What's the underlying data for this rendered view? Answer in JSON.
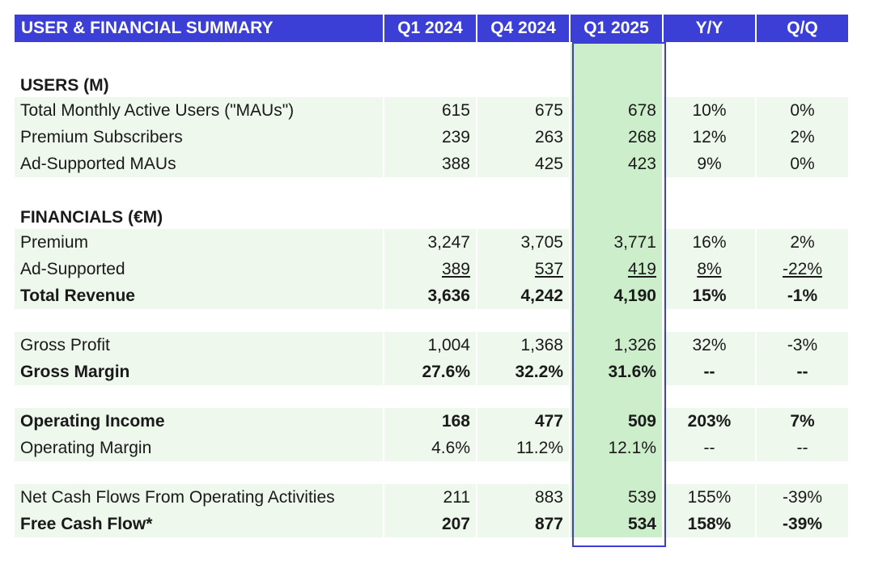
{
  "header": {
    "title": "USER & FINANCIAL SUMMARY",
    "cols": [
      "Q1 2024",
      "Q4 2024",
      "Q1 2025",
      "Y/Y",
      "Q/Q"
    ]
  },
  "sections": {
    "users": "USERS (M)",
    "financials": "FINANCIALS (€M)"
  },
  "rows": {
    "mau": {
      "label": "Total Monthly Active Users (\"MAUs\")",
      "v": [
        "615",
        "675",
        "678",
        "10%",
        "0%"
      ]
    },
    "premsubs": {
      "label": "Premium Subscribers",
      "v": [
        "239",
        "263",
        "268",
        "12%",
        "2%"
      ]
    },
    "admau": {
      "label": "Ad-Supported MAUs",
      "v": [
        "388",
        "425",
        "423",
        "9%",
        "0%"
      ]
    },
    "premium": {
      "label": "Premium",
      "v": [
        "3,247",
        "3,705",
        "3,771",
        "16%",
        "2%"
      ]
    },
    "adsup": {
      "label": "Ad-Supported",
      "v": [
        "389",
        "537",
        "419",
        "8%",
        "-22%"
      ]
    },
    "totrev": {
      "label": "Total Revenue",
      "v": [
        "3,636",
        "4,242",
        "4,190",
        "15%",
        "-1%"
      ]
    },
    "gp": {
      "label": "Gross Profit",
      "v": [
        "1,004",
        "1,368",
        "1,326",
        "32%",
        "-3%"
      ]
    },
    "gm": {
      "label": "Gross Margin",
      "v": [
        "27.6%",
        "32.2%",
        "31.6%",
        "--",
        "--"
      ]
    },
    "oi": {
      "label": "Operating Income",
      "v": [
        "168",
        "477",
        "509",
        "203%",
        "7%"
      ]
    },
    "om": {
      "label": "Operating Margin",
      "v": [
        "4.6%",
        "11.2%",
        "12.1%",
        "--",
        "--"
      ]
    },
    "ncf": {
      "label": "Net Cash Flows From Operating Activities",
      "v": [
        "211",
        "883",
        "539",
        "155%",
        "-39%"
      ]
    },
    "fcf": {
      "label": "Free Cash Flow*",
      "v": [
        "207",
        "877",
        "534",
        "158%",
        "-39%"
      ]
    }
  },
  "colors": {
    "header_bg": "#3b3fd6",
    "row_bg": "#eef8ec",
    "highlight_bg": "#cdeecb"
  }
}
